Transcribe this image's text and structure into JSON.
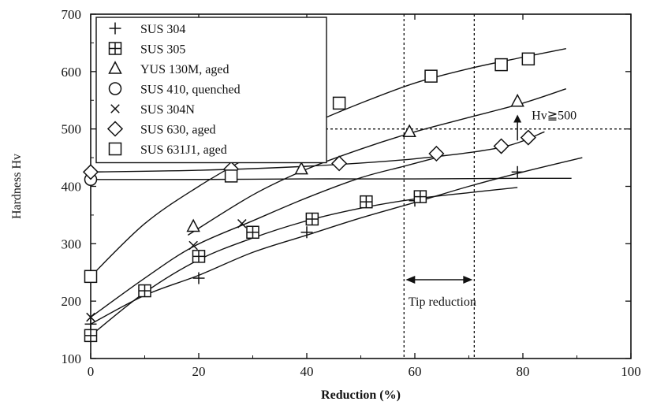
{
  "chart_data": {
    "type": "scatter",
    "xlabel": "Reduction (%)",
    "ylabel": "Hardness Hv",
    "xlim": [
      0,
      100
    ],
    "ylim": [
      100,
      700
    ],
    "x_ticks": [
      "0",
      "20",
      "40",
      "60",
      "80",
      "100"
    ],
    "y_ticks": [
      "100",
      "200",
      "300",
      "400",
      "500",
      "600",
      "700"
    ],
    "grid": false,
    "legend_position": "top-left",
    "series": [
      {
        "name": "SUS 304",
        "marker": "plus",
        "points": [
          [
            0,
            160
          ],
          [
            20,
            240
          ],
          [
            40,
            320
          ],
          [
            60,
            375
          ],
          [
            79,
            425
          ]
        ],
        "curve": [
          [
            0,
            160
          ],
          [
            10,
            210
          ],
          [
            20,
            245
          ],
          [
            30,
            285
          ],
          [
            40,
            315
          ],
          [
            50,
            345
          ],
          [
            60,
            372
          ],
          [
            70,
            400
          ],
          [
            80,
            425
          ],
          [
            91,
            450
          ]
        ]
      },
      {
        "name": "SUS 305",
        "marker": "boxplus",
        "points": [
          [
            0,
            140
          ],
          [
            10,
            218
          ],
          [
            20,
            278
          ],
          [
            30,
            320
          ],
          [
            41,
            343
          ],
          [
            51,
            373
          ],
          [
            61,
            382
          ]
        ],
        "curve": [
          [
            0,
            140
          ],
          [
            10,
            215
          ],
          [
            20,
            272
          ],
          [
            30,
            310
          ],
          [
            40,
            340
          ],
          [
            50,
            362
          ],
          [
            60,
            378
          ],
          [
            70,
            389
          ],
          [
            79,
            398
          ]
        ]
      },
      {
        "name": "YUS 130M, aged",
        "marker": "triangle",
        "points": [
          [
            19,
            330
          ],
          [
            39,
            430
          ],
          [
            59,
            495
          ],
          [
            79,
            548
          ]
        ],
        "curve": [
          [
            18,
            315
          ],
          [
            30,
            385
          ],
          [
            40,
            430
          ],
          [
            50,
            465
          ],
          [
            60,
            495
          ],
          [
            70,
            520
          ],
          [
            80,
            545
          ],
          [
            88,
            570
          ]
        ]
      },
      {
        "name": "SUS 410, quenched",
        "marker": "circle",
        "points": [
          [
            0,
            412
          ]
        ],
        "curve": [
          [
            0,
            412
          ],
          [
            20,
            412
          ],
          [
            40,
            413
          ],
          [
            60,
            413
          ],
          [
            80,
            414
          ],
          [
            89,
            414
          ]
        ]
      },
      {
        "name": "SUS 304N",
        "marker": "cross",
        "points": [
          [
            0,
            172
          ],
          [
            19,
            297
          ],
          [
            28,
            335
          ]
        ],
        "curve": [
          [
            0,
            172
          ],
          [
            10,
            240
          ],
          [
            19,
            295
          ],
          [
            30,
            340
          ],
          [
            40,
            380
          ],
          [
            50,
            415
          ],
          [
            58,
            435
          ],
          [
            64,
            450
          ]
        ]
      },
      {
        "name": "SUS 630, aged",
        "marker": "diamond",
        "points": [
          [
            0,
            425
          ],
          [
            26,
            430
          ],
          [
            46,
            440
          ],
          [
            64,
            457
          ],
          [
            76,
            470
          ],
          [
            81,
            485
          ]
        ],
        "curve": [
          [
            0,
            425
          ],
          [
            20,
            428
          ],
          [
            40,
            435
          ],
          [
            60,
            448
          ],
          [
            76,
            468
          ],
          [
            84,
            495
          ]
        ]
      },
      {
        "name": "SUS 631J1, aged",
        "marker": "square",
        "points": [
          [
            0,
            243
          ],
          [
            26,
            418
          ],
          [
            46,
            545
          ],
          [
            63,
            592
          ],
          [
            76,
            612
          ],
          [
            81,
            622
          ]
        ],
        "curve": [
          [
            0,
            243
          ],
          [
            10,
            335
          ],
          [
            20,
            400
          ],
          [
            30,
            455
          ],
          [
            40,
            505
          ],
          [
            50,
            545
          ],
          [
            60,
            580
          ],
          [
            70,
            605
          ],
          [
            80,
            625
          ],
          [
            88,
            640
          ]
        ]
      }
    ],
    "annotations": [
      {
        "text": "Hv≧500",
        "y": 500,
        "x_line_from": 40,
        "x_line_to": 100,
        "arrow_x": 79,
        "arrow_from": 480,
        "arrow_to": 525
      },
      {
        "text": "Tip reduction",
        "x_from": 58,
        "x_to": 71
      }
    ]
  }
}
